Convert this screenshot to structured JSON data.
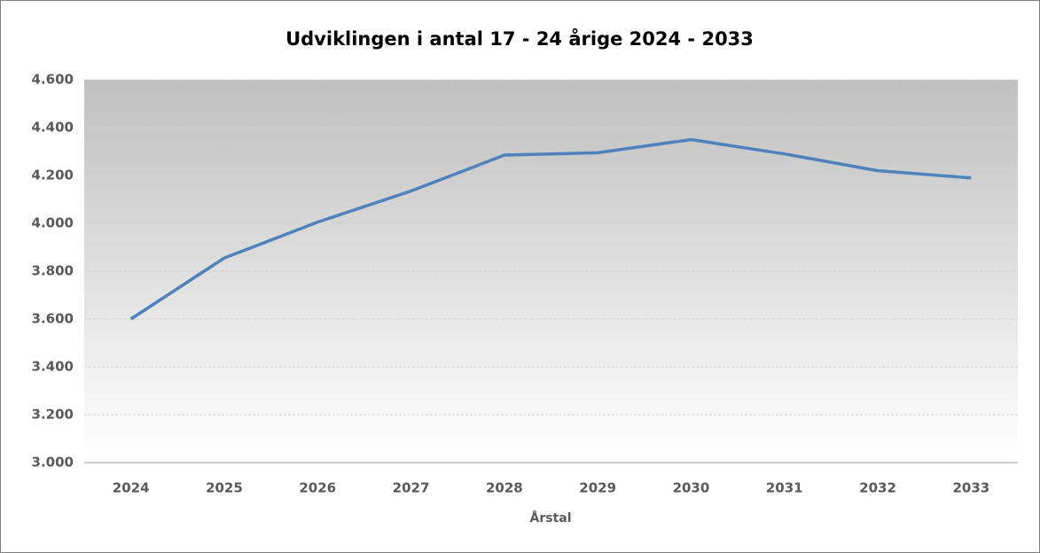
{
  "chart_data": {
    "type": "line",
    "title": "Udviklingen i antal 17 - 24 årige  2024 - 2033",
    "x_label": "Årstal",
    "categories": [
      "2024",
      "2025",
      "2026",
      "2027",
      "2028",
      "2029",
      "2030",
      "2031",
      "2032",
      "2033"
    ],
    "series": [
      {
        "name": "17 - 24 årige",
        "color": "#4f81bd",
        "values": [
          3600,
          3855,
          4005,
          4135,
          4285,
          4295,
          4350,
          4290,
          4220,
          4190
        ]
      }
    ],
    "ylim": [
      3000,
      4600
    ],
    "yticks": [
      {
        "value": 3000,
        "label": "3.000"
      },
      {
        "value": 3200,
        "label": "3.200"
      },
      {
        "value": 3400,
        "label": "3.400"
      },
      {
        "value": 3600,
        "label": "3.600"
      },
      {
        "value": 3800,
        "label": "3.800"
      },
      {
        "value": 4000,
        "label": "4.000"
      },
      {
        "value": 4200,
        "label": "4.200"
      },
      {
        "value": 4400,
        "label": "4.400"
      },
      {
        "value": 4600,
        "label": "4.600"
      }
    ],
    "grid": true
  }
}
